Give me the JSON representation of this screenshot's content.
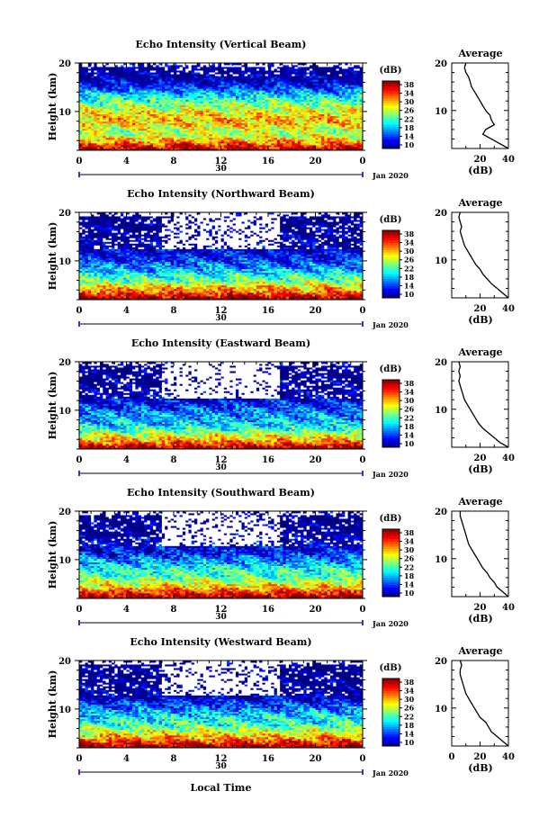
{
  "figure": {
    "xlabel": "Local Time",
    "ylabel": "Height (km)",
    "xticks": [
      "0",
      "4",
      "8",
      "12",
      "16",
      "20",
      "0"
    ],
    "yticks": [
      "20",
      "10"
    ],
    "date_tick": "30",
    "date_label": "Jan 2020",
    "colorbar_unit": "(dB)",
    "colorbar_ticks": [
      "38",
      "34",
      "30",
      "26",
      "22",
      "18",
      "14",
      "10"
    ],
    "avg_title": "Average",
    "avg_xlabel": "(dB)",
    "avg_xticks": [
      "20",
      "40"
    ],
    "avg_xticks_last": [
      "0",
      "20",
      "40"
    ]
  },
  "chart_data": [
    {
      "type": "heatmap",
      "title": "Echo Intensity (Vertical Beam)",
      "xlabel": "",
      "ylabel": "Height (km)",
      "x_range_hours": [
        0,
        24
      ],
      "ylim_km": [
        2,
        20
      ],
      "colorscale": "jet",
      "zlim_dB": [
        10,
        38
      ],
      "profile_dB": [
        37,
        34,
        30,
        27,
        25,
        27,
        29,
        29,
        28,
        26,
        24,
        22,
        20,
        17,
        14,
        12,
        11,
        10,
        10,
        13
      ],
      "variability": 4,
      "white_from_km": 17.5,
      "white_prob": 0.15,
      "average": {
        "xlim": [
          0,
          40
        ],
        "ylim": [
          2,
          20
        ],
        "height_km": [
          2,
          3,
          4,
          5,
          6,
          7,
          8,
          9,
          10,
          11,
          12,
          13,
          14,
          15,
          16,
          17,
          18,
          19,
          20
        ],
        "value_dB": [
          40,
          34,
          28,
          22,
          24,
          30,
          28,
          27,
          24,
          22,
          20,
          18,
          16,
          14,
          13,
          12,
          10,
          9,
          10
        ]
      }
    },
    {
      "type": "heatmap",
      "title": "Echo Intensity (Northward Beam)",
      "xlabel": "",
      "ylabel": "Height (km)",
      "x_range_hours": [
        0,
        24
      ],
      "ylim_km": [
        2,
        20
      ],
      "colorscale": "jet",
      "zlim_dB": [
        10,
        38
      ],
      "profile_dB": [
        38,
        35,
        31,
        28,
        24,
        22,
        20,
        18,
        16,
        14,
        13,
        12,
        11,
        10,
        10,
        10,
        10,
        9,
        9,
        11
      ],
      "variability": 4,
      "white_from_km": 12.5,
      "white_prob": 0.5,
      "average": {
        "xlim": [
          0,
          40
        ],
        "ylim": [
          2,
          20
        ],
        "height_km": [
          2,
          3,
          4,
          5,
          6,
          7,
          8,
          9,
          10,
          11,
          12,
          13,
          14,
          15,
          16,
          17,
          18,
          19,
          20
        ],
        "value_dB": [
          40,
          36,
          32,
          28,
          25,
          22,
          20,
          17,
          15,
          13,
          11,
          9,
          8,
          7,
          6,
          7,
          6,
          5,
          6
        ]
      }
    },
    {
      "type": "heatmap",
      "title": "Echo Intensity (Eastward Beam)",
      "xlabel": "",
      "ylabel": "Height (km)",
      "x_range_hours": [
        0,
        24
      ],
      "ylim_km": [
        2,
        20
      ],
      "colorscale": "jet",
      "zlim_dB": [
        10,
        38
      ],
      "profile_dB": [
        38,
        34,
        30,
        27,
        23,
        20,
        19,
        18,
        17,
        15,
        14,
        12,
        11,
        10,
        10,
        10,
        9,
        9,
        9,
        11
      ],
      "variability": 4,
      "white_from_km": 12.5,
      "white_prob": 0.55,
      "average": {
        "xlim": [
          0,
          40
        ],
        "ylim": [
          2,
          20
        ],
        "height_km": [
          2,
          3,
          4,
          5,
          6,
          7,
          8,
          9,
          10,
          11,
          12,
          13,
          14,
          15,
          16,
          17,
          18,
          19,
          20
        ],
        "value_dB": [
          40,
          34,
          30,
          26,
          22,
          19,
          17,
          15,
          13,
          11,
          9,
          8,
          7,
          6,
          5,
          6,
          5,
          6,
          5
        ]
      }
    },
    {
      "type": "heatmap",
      "title": "Echo Intensity (Southward Beam)",
      "xlabel": "",
      "ylabel": "Height (km)",
      "x_range_hours": [
        0,
        24
      ],
      "ylim_km": [
        2,
        20
      ],
      "colorscale": "jet",
      "zlim_dB": [
        10,
        38
      ],
      "profile_dB": [
        38,
        35,
        31,
        28,
        25,
        22,
        22,
        20,
        18,
        16,
        14,
        13,
        12,
        11,
        10,
        10,
        10,
        9,
        9,
        11
      ],
      "variability": 4,
      "white_from_km": 13.0,
      "white_prob": 0.5,
      "average": {
        "xlim": [
          0,
          40
        ],
        "ylim": [
          2,
          20
        ],
        "height_km": [
          2,
          3,
          4,
          5,
          6,
          7,
          8,
          9,
          10,
          11,
          12,
          13,
          14,
          15,
          16,
          17,
          18,
          19,
          20
        ],
        "value_dB": [
          40,
          36,
          32,
          30,
          27,
          25,
          22,
          20,
          18,
          16,
          14,
          12,
          11,
          10,
          9,
          8,
          7,
          6,
          6
        ]
      }
    },
    {
      "type": "heatmap",
      "title": "Echo Intensity (Westward Beam)",
      "xlabel": "Local Time",
      "ylabel": "Height (km)",
      "x_range_hours": [
        0,
        24
      ],
      "ylim_km": [
        2,
        20
      ],
      "colorscale": "jet",
      "zlim_dB": [
        10,
        38
      ],
      "profile_dB": [
        38,
        35,
        31,
        28,
        25,
        22,
        21,
        20,
        18,
        16,
        14,
        12,
        11,
        10,
        10,
        10,
        9,
        9,
        9,
        11
      ],
      "variability": 4,
      "white_from_km": 13.0,
      "white_prob": 0.5,
      "average": {
        "xlim": [
          0,
          40
        ],
        "ylim": [
          2,
          20
        ],
        "height_km": [
          2,
          3,
          4,
          5,
          6,
          7,
          8,
          9,
          10,
          11,
          12,
          13,
          14,
          15,
          16,
          17,
          18,
          19,
          20
        ],
        "value_dB": [
          40,
          36,
          32,
          28,
          26,
          24,
          20,
          18,
          16,
          14,
          12,
          10,
          9,
          8,
          7,
          6,
          6,
          7,
          6
        ]
      }
    }
  ]
}
